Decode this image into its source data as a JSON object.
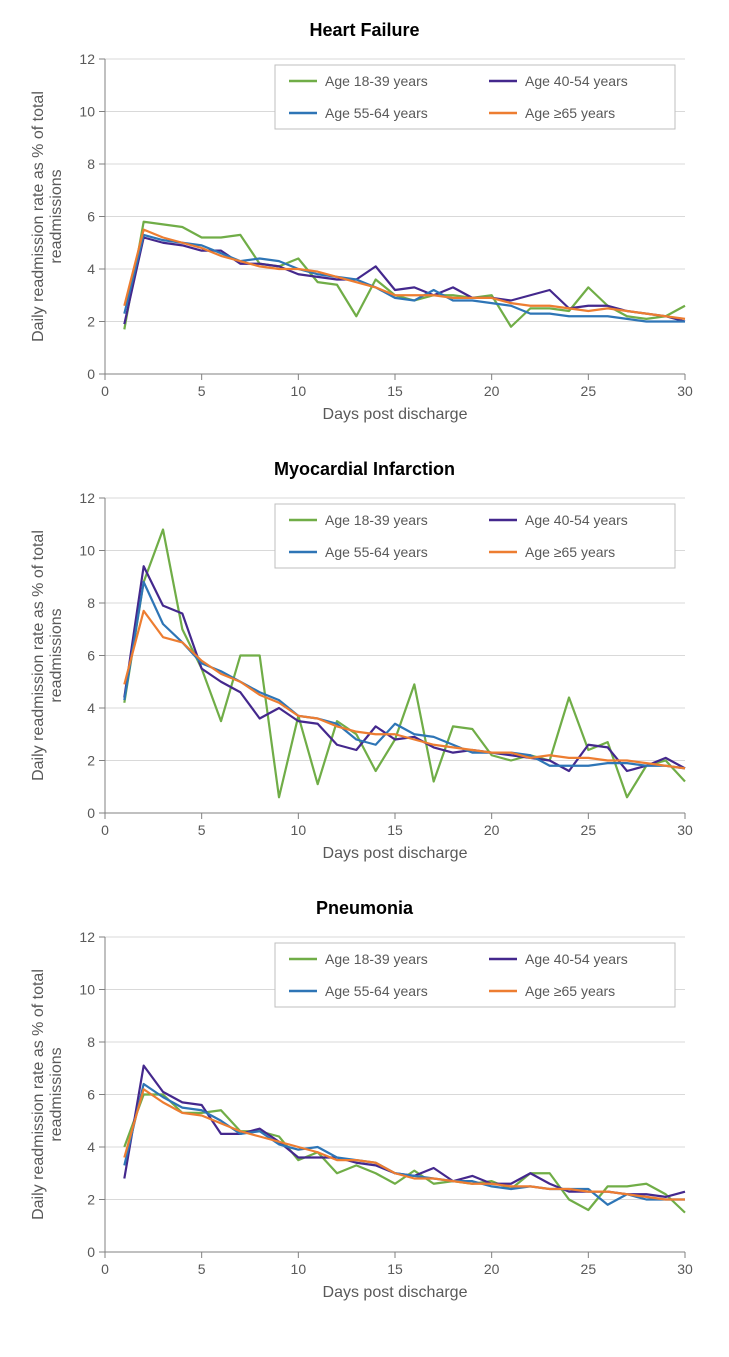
{
  "global": {
    "xlabel": "Days post discharge",
    "ylabel": "Daily readmission rate as % of total readmissions",
    "xlim": [
      0,
      30
    ],
    "ylim": [
      0,
      12
    ],
    "xtick_step": 5,
    "ytick_step": 2,
    "background_color": "#ffffff",
    "grid_color": "#d9d9d9",
    "axis_color": "#808080",
    "tick_color": "#808080",
    "line_width": 2.2,
    "title_fontsize": 18,
    "label_fontsize": 16,
    "tick_fontsize": 14,
    "legend_fontsize": 14,
    "legend_border_color": "#bfbfbf",
    "series_meta": [
      {
        "name": "Age 18-39 years",
        "color": "#70ad47"
      },
      {
        "name": "Age 40-54 years",
        "color": "#44288d"
      },
      {
        "name": "Age 55-64 years",
        "color": "#2e75b6"
      },
      {
        "name": "Age ≥65 years",
        "color": "#ed7d31"
      }
    ]
  },
  "charts": [
    {
      "title": "Heart Failure",
      "x": [
        1,
        2,
        3,
        4,
        5,
        6,
        7,
        8,
        9,
        10,
        11,
        12,
        13,
        14,
        15,
        16,
        17,
        18,
        19,
        20,
        21,
        22,
        23,
        24,
        25,
        26,
        27,
        28,
        29,
        30
      ],
      "series": [
        {
          "key": "s1",
          "values": [
            1.7,
            5.8,
            5.7,
            5.6,
            5.2,
            5.2,
            5.3,
            4.2,
            4.1,
            4.4,
            3.5,
            3.4,
            2.2,
            3.6,
            3.0,
            2.8,
            3.0,
            3.0,
            2.9,
            3.0,
            1.8,
            2.5,
            2.5,
            2.4,
            3.3,
            2.6,
            2.2,
            2.1,
            2.2,
            2.6
          ]
        },
        {
          "key": "s2",
          "values": [
            1.9,
            5.2,
            5.0,
            4.9,
            4.7,
            4.7,
            4.2,
            4.2,
            4.1,
            3.8,
            3.7,
            3.6,
            3.6,
            4.1,
            3.2,
            3.3,
            3.0,
            3.3,
            2.9,
            2.9,
            2.8,
            3.0,
            3.2,
            2.5,
            2.6,
            2.6,
            2.4,
            2.3,
            2.2,
            2.0
          ]
        },
        {
          "key": "s3",
          "values": [
            2.3,
            5.3,
            5.1,
            5.0,
            4.9,
            4.6,
            4.3,
            4.4,
            4.3,
            4.0,
            3.8,
            3.7,
            3.6,
            3.3,
            2.9,
            2.8,
            3.2,
            2.8,
            2.8,
            2.7,
            2.6,
            2.3,
            2.3,
            2.2,
            2.2,
            2.2,
            2.1,
            2.0,
            2.0,
            2.0
          ]
        },
        {
          "key": "s4",
          "values": [
            2.6,
            5.5,
            5.2,
            5.0,
            4.8,
            4.5,
            4.3,
            4.1,
            4.0,
            4.0,
            3.9,
            3.7,
            3.5,
            3.3,
            3.0,
            3.0,
            3.0,
            2.9,
            2.9,
            2.9,
            2.7,
            2.6,
            2.6,
            2.5,
            2.4,
            2.5,
            2.4,
            2.3,
            2.2,
            2.1
          ]
        }
      ]
    },
    {
      "title": "Myocardial Infarction",
      "x": [
        1,
        2,
        3,
        4,
        5,
        6,
        7,
        8,
        9,
        10,
        11,
        12,
        13,
        14,
        15,
        16,
        17,
        18,
        19,
        20,
        21,
        22,
        23,
        24,
        25,
        26,
        27,
        28,
        29,
        30
      ],
      "series": [
        {
          "key": "s1",
          "values": [
            4.2,
            8.8,
            10.8,
            7.0,
            5.5,
            3.5,
            6.0,
            6.0,
            0.6,
            3.7,
            1.1,
            3.5,
            3.0,
            1.6,
            2.8,
            4.9,
            1.2,
            3.3,
            3.2,
            2.2,
            2.0,
            2.2,
            2.0,
            4.4,
            2.4,
            2.7,
            0.6,
            1.8,
            2.0,
            1.2
          ]
        },
        {
          "key": "s2",
          "values": [
            4.4,
            9.4,
            7.9,
            7.6,
            5.5,
            5.0,
            4.6,
            3.6,
            4.0,
            3.5,
            3.4,
            2.6,
            2.4,
            3.3,
            2.8,
            2.9,
            2.5,
            2.3,
            2.4,
            2.3,
            2.2,
            2.1,
            2.0,
            1.6,
            2.6,
            2.5,
            1.6,
            1.8,
            2.1,
            1.7
          ]
        },
        {
          "key": "s3",
          "values": [
            4.3,
            8.8,
            7.2,
            6.5,
            5.7,
            5.4,
            5.0,
            4.6,
            4.3,
            3.7,
            3.6,
            3.4,
            2.8,
            2.6,
            3.4,
            3.0,
            2.9,
            2.6,
            2.3,
            2.3,
            2.3,
            2.2,
            1.8,
            1.8,
            1.8,
            1.9,
            1.9,
            1.8,
            1.8,
            1.7
          ]
        },
        {
          "key": "s4",
          "values": [
            4.9,
            7.7,
            6.7,
            6.5,
            5.8,
            5.3,
            5.0,
            4.5,
            4.2,
            3.7,
            3.6,
            3.3,
            3.1,
            3.0,
            3.0,
            2.8,
            2.6,
            2.5,
            2.4,
            2.3,
            2.3,
            2.1,
            2.2,
            2.1,
            2.1,
            2.0,
            2.0,
            1.9,
            1.8,
            1.7
          ]
        }
      ]
    },
    {
      "title": "Pneumonia",
      "x": [
        1,
        2,
        3,
        4,
        5,
        6,
        7,
        8,
        9,
        10,
        11,
        12,
        13,
        14,
        15,
        16,
        17,
        18,
        19,
        20,
        21,
        22,
        23,
        24,
        25,
        26,
        27,
        28,
        29,
        30
      ],
      "series": [
        {
          "key": "s1",
          "values": [
            4.0,
            6.0,
            6.0,
            5.3,
            5.3,
            5.4,
            4.6,
            4.6,
            4.4,
            3.5,
            3.8,
            3.0,
            3.3,
            3.0,
            2.6,
            3.1,
            2.6,
            2.7,
            2.6,
            2.7,
            2.4,
            3.0,
            3.0,
            2.0,
            1.6,
            2.5,
            2.5,
            2.6,
            2.2,
            1.5
          ]
        },
        {
          "key": "s2",
          "values": [
            2.8,
            7.1,
            6.1,
            5.7,
            5.6,
            4.5,
            4.5,
            4.7,
            4.2,
            3.6,
            3.6,
            3.6,
            3.4,
            3.3,
            3.0,
            2.9,
            3.2,
            2.7,
            2.9,
            2.6,
            2.6,
            3.0,
            2.6,
            2.3,
            2.3,
            2.3,
            2.2,
            2.2,
            2.1,
            2.3
          ]
        },
        {
          "key": "s3",
          "values": [
            3.3,
            6.4,
            5.9,
            5.5,
            5.4,
            5.0,
            4.5,
            4.6,
            4.1,
            3.9,
            4.0,
            3.6,
            3.5,
            3.4,
            3.0,
            2.9,
            2.8,
            2.7,
            2.7,
            2.5,
            2.4,
            2.5,
            2.4,
            2.4,
            2.4,
            1.8,
            2.2,
            2.0,
            2.0,
            2.0
          ]
        },
        {
          "key": "s4",
          "values": [
            3.6,
            6.2,
            5.7,
            5.3,
            5.2,
            4.9,
            4.6,
            4.4,
            4.2,
            4.0,
            3.8,
            3.5,
            3.5,
            3.4,
            3.0,
            2.8,
            2.8,
            2.7,
            2.6,
            2.6,
            2.5,
            2.5,
            2.4,
            2.4,
            2.3,
            2.3,
            2.2,
            2.1,
            2.0,
            2.0
          ]
        }
      ]
    }
  ]
}
